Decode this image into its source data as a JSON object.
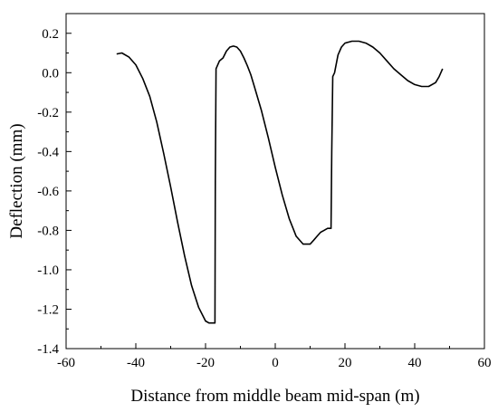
{
  "chart_data": {
    "type": "line",
    "xlabel": "Distance from middle beam mid-span (m)",
    "ylabel": "Deflection (mm)",
    "xlim": [
      -60,
      60
    ],
    "ylim": [
      -1.4,
      0.3
    ],
    "x_ticks": [
      -60,
      -40,
      -20,
      0,
      20,
      40,
      60
    ],
    "x_tick_labels": [
      "-60",
      "-40",
      "-20",
      "0",
      "20",
      "40",
      "60"
    ],
    "y_ticks": [
      -1.4,
      -1.2,
      -1.0,
      -0.8,
      -0.6,
      -0.4,
      -0.2,
      0.0,
      0.2
    ],
    "y_tick_labels": [
      "-1.4",
      "-1.2",
      "-1.0",
      "-0.8",
      "-0.6",
      "-0.4",
      "-0.2",
      "0.0",
      "0.2"
    ],
    "grid": false,
    "legend": "none",
    "line_color": "#000000",
    "series": [
      {
        "x": [
          -45.5,
          -44,
          -42,
          -40,
          -38,
          -36,
          -34,
          -32,
          -30,
          -28,
          -26,
          -24,
          -22,
          -20,
          -19,
          -18,
          -17.3,
          -17.2,
          -17,
          -16,
          -15,
          -14,
          -13,
          -12,
          -11,
          -10,
          -9,
          -8,
          -7,
          -6,
          -4,
          -2,
          0,
          2,
          4,
          6,
          8,
          10,
          11,
          12,
          13,
          14,
          15,
          16,
          16.2,
          16.5,
          17,
          18,
          19,
          20,
          22,
          24,
          26,
          28,
          30,
          32,
          34,
          36,
          38,
          40,
          42,
          44,
          46,
          47,
          48
        ],
        "y": [
          0.095,
          0.1,
          0.08,
          0.04,
          -0.03,
          -0.12,
          -0.25,
          -0.41,
          -0.58,
          -0.76,
          -0.93,
          -1.08,
          -1.19,
          -1.26,
          -1.27,
          -1.27,
          -1.27,
          -0.55,
          0.02,
          0.06,
          0.075,
          0.11,
          0.13,
          0.135,
          0.13,
          0.11,
          0.075,
          0.035,
          -0.01,
          -0.07,
          -0.19,
          -0.33,
          -0.48,
          -0.62,
          -0.74,
          -0.83,
          -0.87,
          -0.87,
          -0.85,
          -0.83,
          -0.81,
          -0.8,
          -0.79,
          -0.79,
          -0.4,
          -0.02,
          0.0,
          0.09,
          0.13,
          0.15,
          0.16,
          0.16,
          0.15,
          0.13,
          0.1,
          0.06,
          0.02,
          -0.01,
          -0.04,
          -0.06,
          -0.07,
          -0.07,
          -0.05,
          -0.02,
          0.02
        ]
      }
    ]
  }
}
